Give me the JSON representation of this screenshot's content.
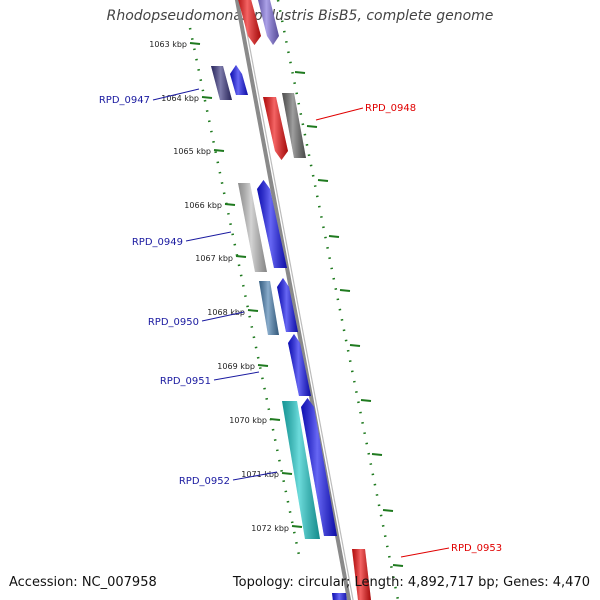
{
  "title": "Rhodopseudomonas palustris BisB5, complete genome",
  "accession": "Accession: NC_007958",
  "topology": "Topology: circular; Length: 4,892,717 bp; Genes: 4,470",
  "colors": {
    "backbone": "#8a8a8a",
    "tick": "#1f7a1f",
    "label_left": "#1a1aa0",
    "label_right": "#e00000"
  },
  "ticks": [
    {
      "label": "1063 kbp"
    },
    {
      "label": "1064 kbp"
    },
    {
      "label": "1065 kbp"
    },
    {
      "label": "1066 kbp"
    },
    {
      "label": "1067 kbp"
    },
    {
      "label": "1068 kbp"
    },
    {
      "label": "1069 kbp"
    },
    {
      "label": "1070 kbp"
    },
    {
      "label": "1071 kbp"
    },
    {
      "label": "1072 kbp"
    }
  ],
  "genes": [
    {
      "name": "",
      "color": "#ee1111"
    },
    {
      "name": "",
      "color": "#7f6fdc"
    },
    {
      "name": "",
      "color": "#3a3680"
    },
    {
      "name": "RPD_0947",
      "color": "#1515ee"
    },
    {
      "name": "RPD_0948",
      "color": "#ee1111"
    },
    {
      "name": "",
      "color": "#6a6a6a"
    },
    {
      "name": "",
      "color": "#bdbdbd"
    },
    {
      "name": "RPD_0949",
      "color": "#1515ee"
    },
    {
      "name": "",
      "color": "#4a80b0"
    },
    {
      "name": "RPD_0950",
      "color": "#1515ee"
    },
    {
      "name": "RPD_0951",
      "color": "#1515ee"
    },
    {
      "name": "",
      "color": "#1ec8c8"
    },
    {
      "name": "RPD_0952",
      "color": "#1515ee"
    },
    {
      "name": "RPD_0953",
      "color": "#ee1111"
    },
    {
      "name": "",
      "color": "#1515ee"
    }
  ]
}
